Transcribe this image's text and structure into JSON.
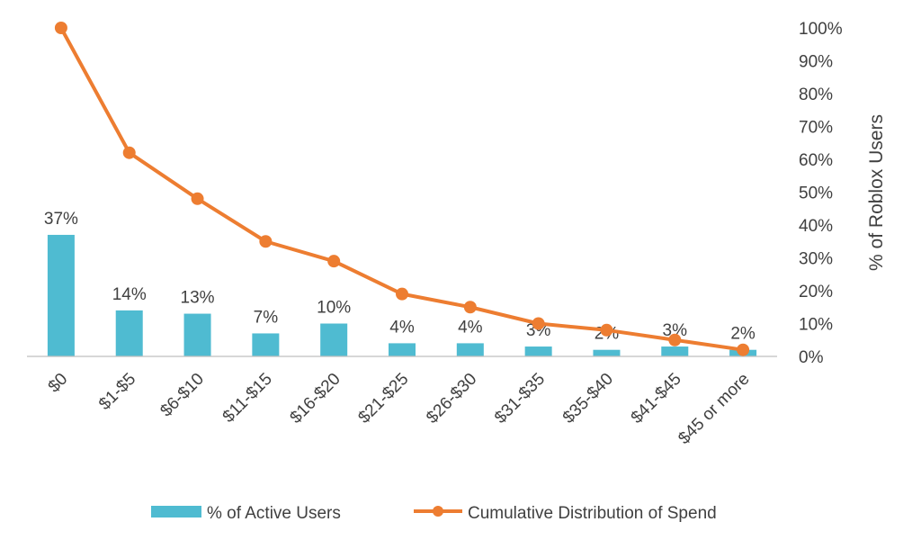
{
  "chart_data": {
    "type": "bar",
    "categories": [
      "$0",
      "$1-$5",
      "$6-$10",
      "$11-$15",
      "$16-$20",
      "$21-$25",
      "$26-$30",
      "$31-$35",
      "$35-$40",
      "$41-$45",
      "$45 or more"
    ],
    "series": [
      {
        "name": "% of Active Users",
        "type": "bar",
        "color": "#4FBBD1",
        "values": [
          37,
          14,
          13,
          7,
          10,
          4,
          4,
          3,
          2,
          3,
          2
        ],
        "labels": [
          "37%",
          "14%",
          "13%",
          "7%",
          "10%",
          "4%",
          "4%",
          "3%",
          "2%",
          "3%",
          "2%"
        ]
      },
      {
        "name": "Cumulative Distribution of Spend",
        "type": "line",
        "color": "#ED7D31",
        "values": [
          100,
          62,
          48,
          35,
          29,
          19,
          15,
          10,
          8,
          5,
          2
        ]
      }
    ],
    "y2label": "% of Roblox Users",
    "ylim": [
      0,
      100
    ],
    "yticks": [
      "0%",
      "10%",
      "20%",
      "30%",
      "40%",
      "50%",
      "60%",
      "70%",
      "80%",
      "90%",
      "100%"
    ],
    "legend_position": "bottom",
    "grid": false
  }
}
